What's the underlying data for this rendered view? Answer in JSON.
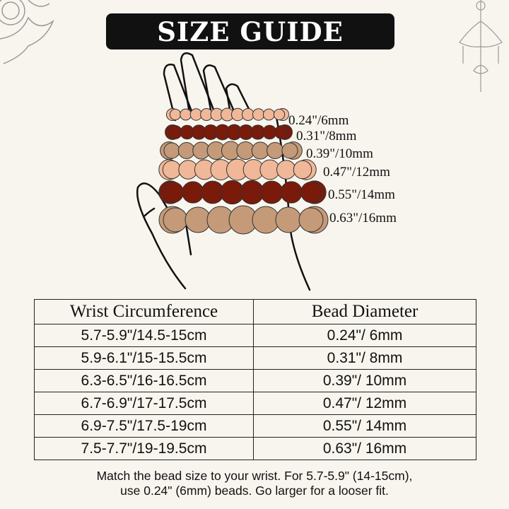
{
  "title": "SIZE GUIDE",
  "bead_colors": {
    "peach": "#f0b898",
    "dark_red": "#7a1a0a",
    "tan": "#c49a78"
  },
  "bead_rows": [
    {
      "label": "0.24\"/6mm",
      "color": "#f0b898"
    },
    {
      "label": "0.31\"/8mm",
      "color": "#7a1a0a"
    },
    {
      "label": "0.39\"/10mm",
      "color": "#c49a78"
    },
    {
      "label": "0.47\"/12mm",
      "color": "#f0b898"
    },
    {
      "label": "0.55\"/14mm",
      "color": "#7a1a0a"
    },
    {
      "label": "0.63\"/16mm",
      "color": "#c49a78"
    }
  ],
  "table": {
    "headers": [
      "Wrist Circumference",
      "Bead Diameter"
    ],
    "rows": [
      [
        "5.7-5.9\"/14.5-15cm",
        "0.24\"/ 6mm"
      ],
      [
        "5.9-6.1\"/15-15.5cm",
        "0.31\"/ 8mm"
      ],
      [
        "6.3-6.5\"/16-16.5cm",
        "0.39\"/ 10mm"
      ],
      [
        "6.7-6.9\"/17-17.5cm",
        "0.47\"/ 12mm"
      ],
      [
        "6.9-7.5\"/17.5-19cm",
        "0.55\"/ 14mm"
      ],
      [
        "7.5-7.7\"/19-19.5cm",
        "0.63\"/ 16mm"
      ]
    ]
  },
  "note": [
    "Match the bead size to your wrist. For 5.7-5.9\" (14-15cm),",
    "use 0.24\" (6mm) beads. Go larger for a looser fit."
  ]
}
